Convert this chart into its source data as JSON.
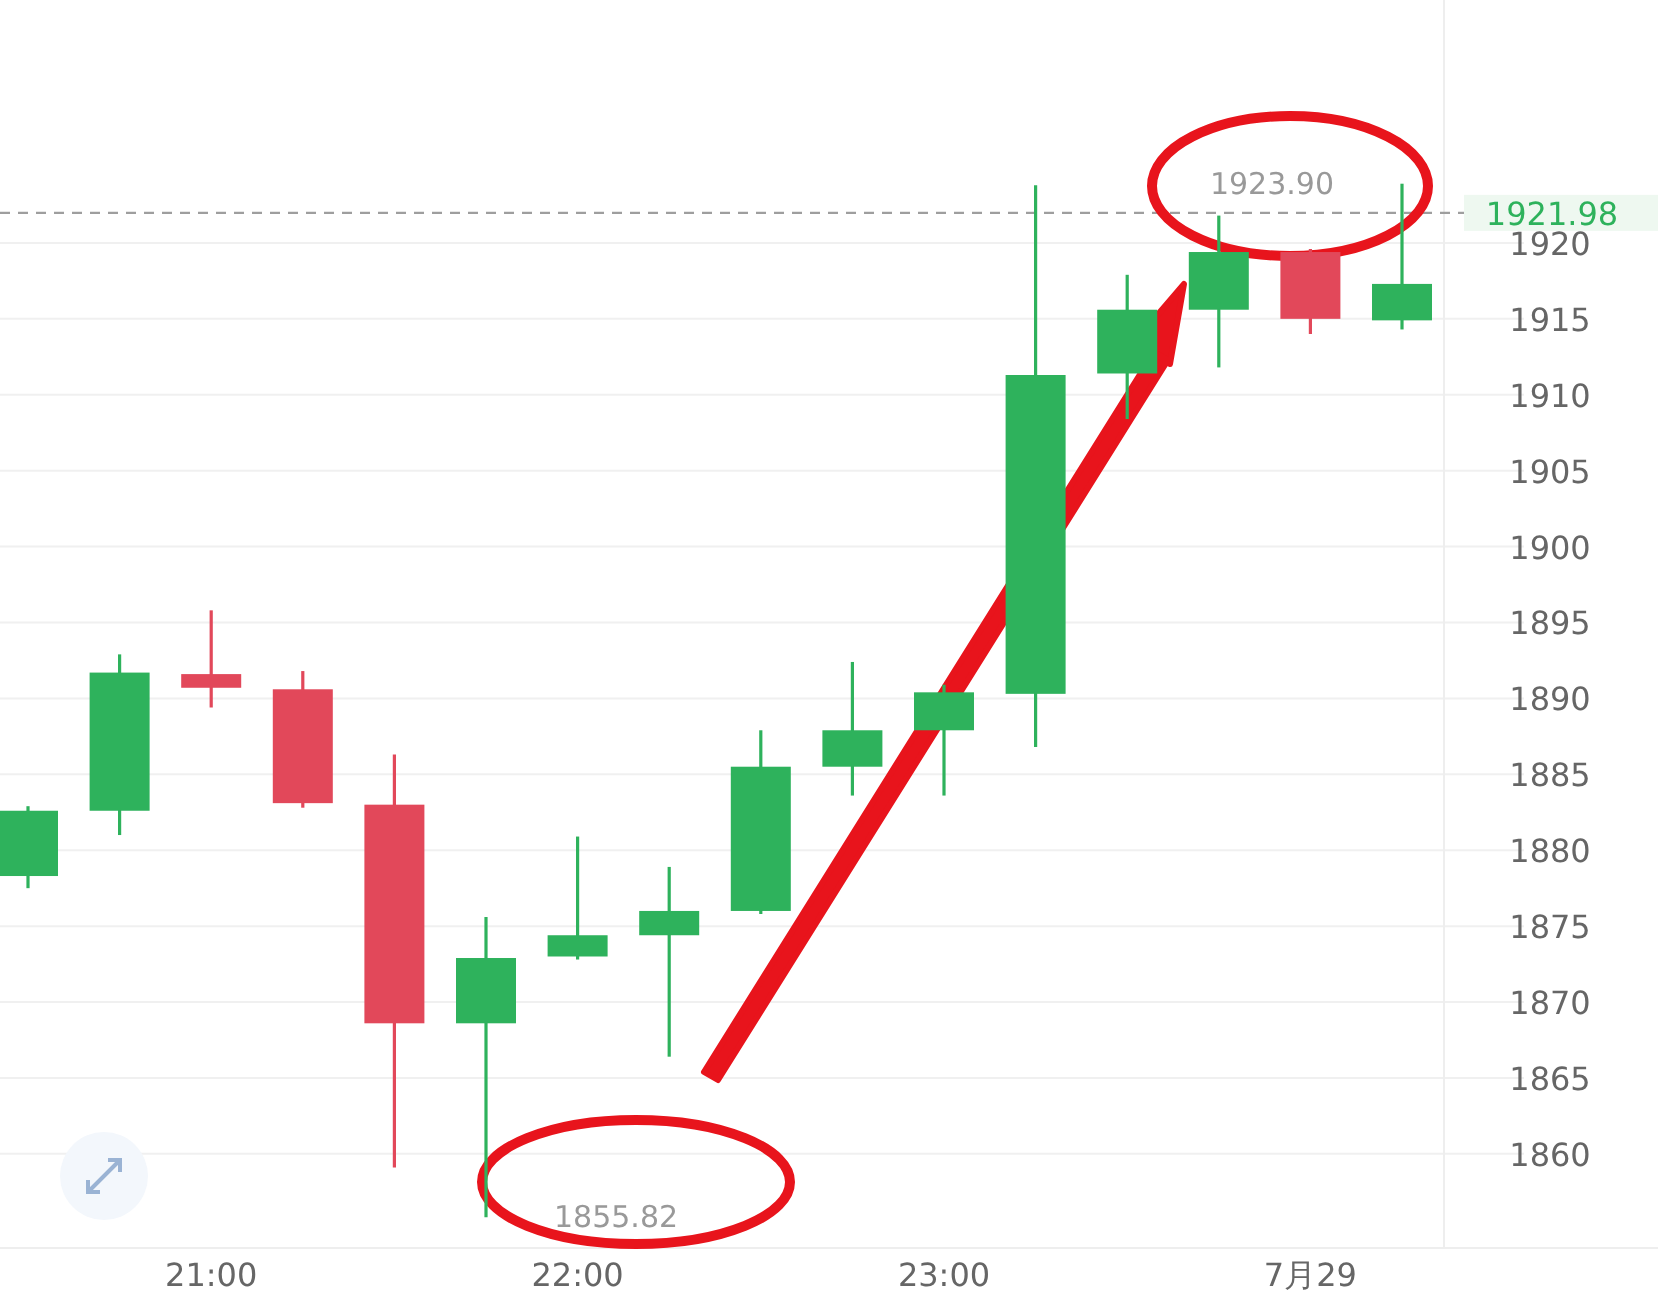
{
  "chart_data": {
    "type": "candlestick",
    "categories": [
      null,
      null,
      "21:00",
      null,
      null,
      null,
      "22:00",
      null,
      null,
      null,
      "23:00",
      null,
      null,
      null,
      "7月29",
      null
    ],
    "ohlc": [
      [
        1878.3,
        1882.9,
        1877.5,
        1882.6
      ],
      [
        1882.6,
        1892.9,
        1881.0,
        1891.7
      ],
      [
        1891.6,
        1895.8,
        1889.4,
        1890.7
      ],
      [
        1890.6,
        1891.8,
        1882.8,
        1883.1
      ],
      [
        1883.0,
        1886.3,
        1859.1,
        1868.6
      ],
      [
        1868.6,
        1875.6,
        1855.82,
        1872.9
      ],
      [
        1873.0,
        1880.9,
        1872.8,
        1874.4
      ],
      [
        1874.4,
        1878.9,
        1866.4,
        1876.0
      ],
      [
        1876.0,
        1887.9,
        1875.8,
        1885.5
      ],
      [
        1885.5,
        1892.4,
        1883.6,
        1887.9
      ],
      [
        1887.9,
        1890.9,
        1883.6,
        1890.4
      ],
      [
        1890.3,
        1923.8,
        1886.8,
        1911.3
      ],
      [
        1911.4,
        1917.9,
        1908.4,
        1915.6
      ],
      [
        1915.6,
        1921.8,
        1911.8,
        1919.4
      ],
      [
        1919.4,
        1919.6,
        1914.0,
        1915.0
      ],
      [
        1914.9,
        1923.9,
        1914.3,
        1917.3
      ]
    ],
    "colors": [
      "#2eb25c",
      "#2eb25c",
      "#e2485a",
      "#e2485a",
      "#e2485a",
      "#2eb25c",
      "#2eb25c",
      "#2eb25c",
      "#2eb25c",
      "#2eb25c",
      "#2eb25c",
      "#2eb25c",
      "#2eb25c",
      "#2eb25c",
      "#e2485a",
      "#2eb25c"
    ],
    "ylim": [
      1853.8,
      1936
    ],
    "yticks": [
      1860,
      1865,
      1870,
      1875,
      1880,
      1885,
      1890,
      1895,
      1900,
      1905,
      1910,
      1915,
      1920
    ],
    "grid": "y",
    "ref_lines": [
      {
        "axis": "y",
        "value": 1921.98,
        "label": "1921.98",
        "color": "#9e9e9e",
        "line_style": "dashed"
      }
    ],
    "annotations": [
      "1923.90",
      "1855.82"
    ]
  }
}
